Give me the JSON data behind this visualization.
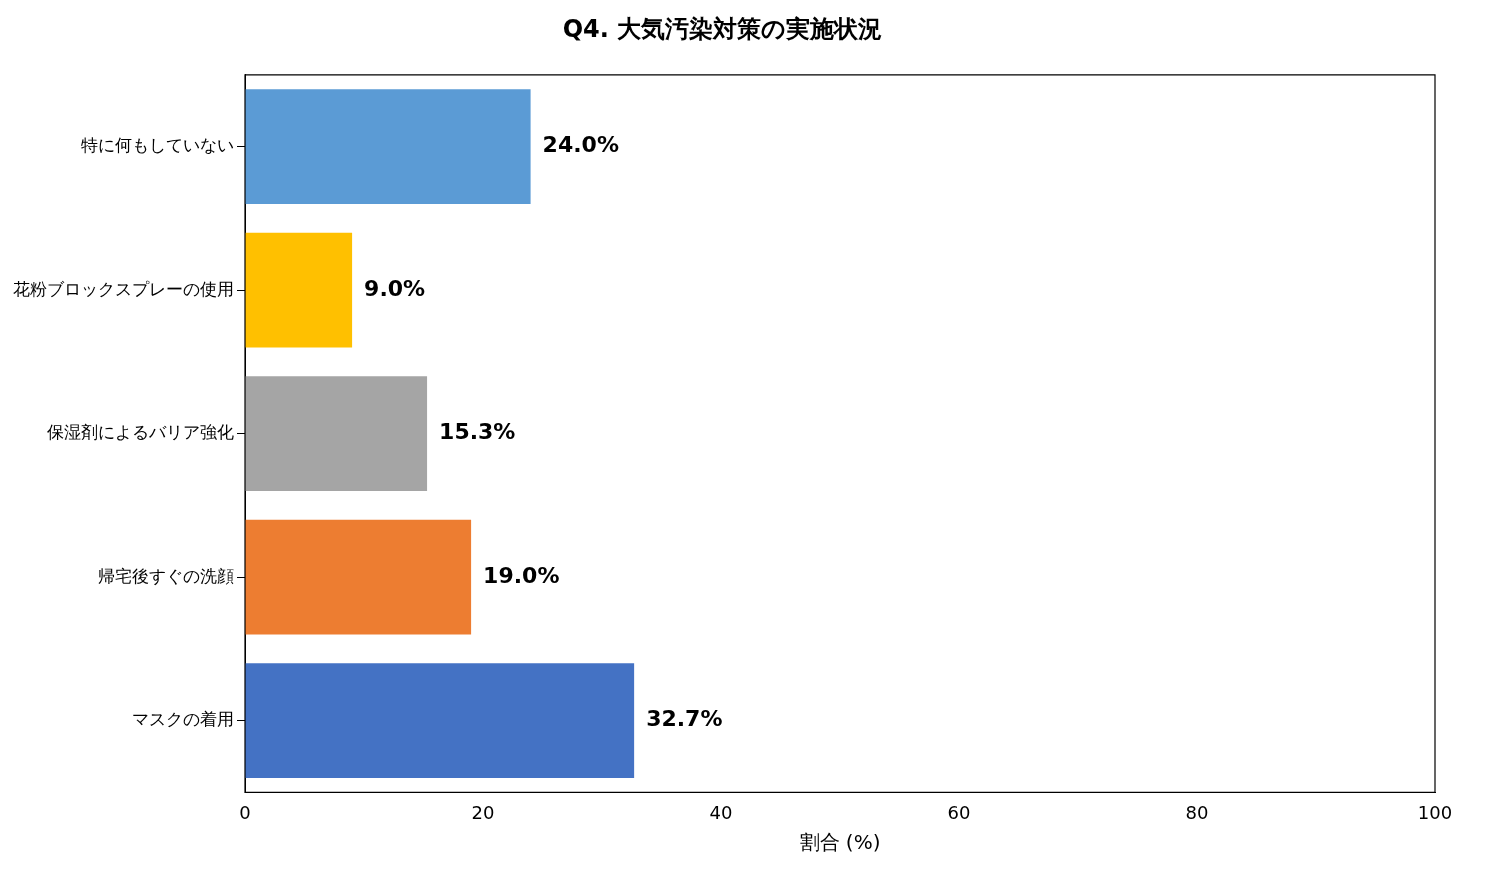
{
  "chart_data": {
    "type": "bar",
    "orientation": "horizontal",
    "title": "Q4. 大気汚染対策の実施状況",
    "xlabel": "割合 (%)",
    "categories": [
      "特に何もしていない",
      "花粉ブロックスプレーの使用",
      "保湿剤によるバリア強化",
      "帰宅後すぐの洗顔",
      "マスクの着用"
    ],
    "values": [
      24.0,
      9.0,
      15.3,
      19.0,
      32.7
    ],
    "colors": [
      "#5b9bd5",
      "#ffc000",
      "#a5a5a5",
      "#ed7d31",
      "#4472c4"
    ],
    "value_labels": [
      "24.0%",
      "9.0%",
      "15.3%",
      "19.0%",
      "32.7%"
    ],
    "xlim": [
      0,
      100
    ],
    "xticks": [
      0,
      20,
      40,
      60,
      80,
      100
    ],
    "grid": false,
    "legend": false
  }
}
